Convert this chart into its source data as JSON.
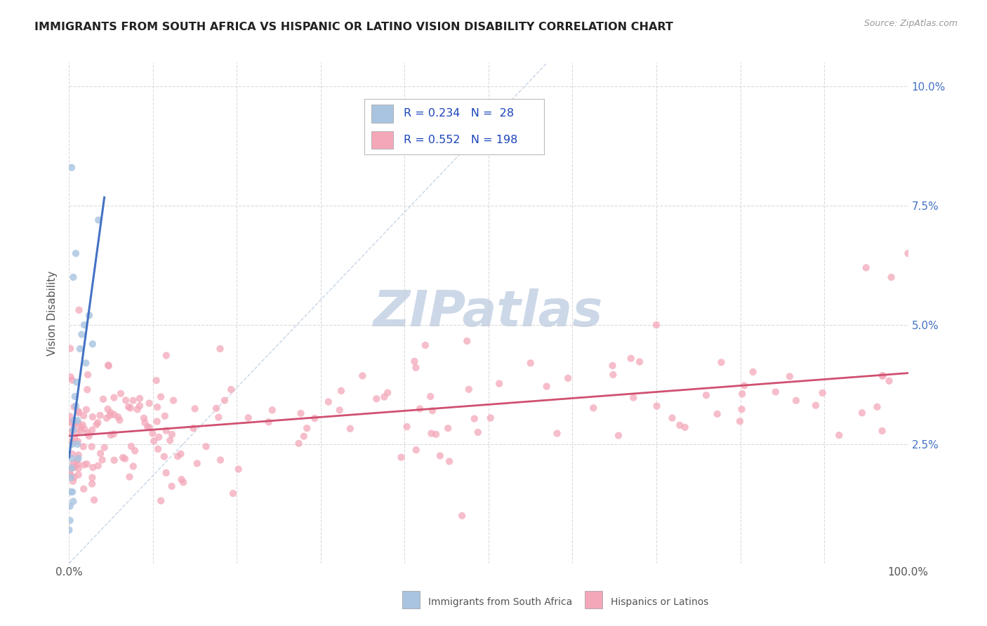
{
  "title": "IMMIGRANTS FROM SOUTH AFRICA VS HISPANIC OR LATINO VISION DISABILITY CORRELATION CHART",
  "source": "Source: ZipAtlas.com",
  "ylabel": "Vision Disability",
  "xlim": [
    0,
    1.0
  ],
  "ylim": [
    0,
    0.105
  ],
  "ytick_positions": [
    0.0,
    0.025,
    0.05,
    0.075,
    0.1
  ],
  "ytick_labels_right": [
    "",
    "2.5%",
    "5.0%",
    "7.5%",
    "10.0%"
  ],
  "xtick_positions": [
    0.0,
    0.1,
    0.2,
    0.3,
    0.4,
    0.5,
    0.6,
    0.7,
    0.8,
    0.9,
    1.0
  ],
  "xtick_labels": [
    "0.0%",
    "",
    "",
    "",
    "",
    "",
    "",
    "",
    "",
    "",
    "100.0%"
  ],
  "R_blue": 0.234,
  "N_blue": 28,
  "R_pink": 0.552,
  "N_pink": 198,
  "color_blue_scatter": "#a8c4e0",
  "color_blue_line": "#4472c4",
  "color_blue_legend": "#a8c4e0",
  "color_pink_scatter": "#f4a7b9",
  "color_pink_line": "#d05070",
  "color_pink_legend": "#f4a7b9",
  "color_diag": "#b8cce0",
  "watermark_color": "#ccd8e8",
  "title_color": "#222222",
  "title_fontsize": 11.5,
  "legend_text_color": "#1a44bb",
  "legend_label_color": "#333333",
  "right_tick_color": "#4472c4",
  "bottom_legend_blue_text": "Immigrants from South Africa",
  "bottom_legend_pink_text": "Hispanics or Latinos"
}
